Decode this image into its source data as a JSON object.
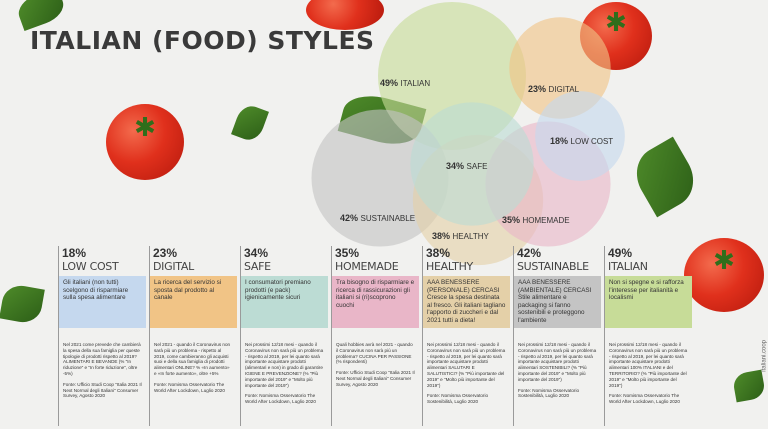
{
  "title": "ITALIAN (FOOD) STYLES",
  "watermark": "italiani.coop",
  "colors": {
    "italian": "#c7dc98",
    "digital": "#f1c486",
    "low_cost": "#c5d8ee",
    "safe": "#bcdcd4",
    "homemade": "#e9b6c8",
    "healthy": "#e4d0a8",
    "sustainable": "#c4c4c4"
  },
  "chart_data": {
    "type": "bubble",
    "title": "ITALIAN (FOOD) STYLES",
    "unit": "%",
    "series": [
      {
        "name": "ITALIAN",
        "value": 49
      },
      {
        "name": "DIGITAL",
        "value": 23
      },
      {
        "name": "LOW COST",
        "value": 18
      },
      {
        "name": "SAFE",
        "value": 34
      },
      {
        "name": "SUSTAINABLE",
        "value": 42
      },
      {
        "name": "HOMEMADE",
        "value": 35
      },
      {
        "name": "HEALTHY",
        "value": 38
      }
    ]
  },
  "columns": [
    {
      "pct": "18%",
      "cat": "LOW COST",
      "color_key": "low_cost",
      "desc": "Gli italiani (non tutti) scelgono di risparmiare sulla spesa alimentare",
      "note": "Nel 2021 come prevede che cambierà la spesa della sua famiglia per queste tipologie di prodotti rispetto al 2019? ALIMENTARI E BEVANDE (% \"In riduzione\" e \"In forte riduzione\", oltre -5%)",
      "source": "Fonte: Ufficio Studi Coop \"Italia 2021 Il Next Normal degli Italiani\" Consumer Survey, Agosto 2020"
    },
    {
      "pct": "23%",
      "cat": "DIGITAL",
      "color_key": "digital",
      "desc": "La ricerca del servizio si sposta dal prodotto al canale",
      "note": "Nel 2021 - quando il Coronavirus non sarà più un problema - rispetto al 2019, come cambieranno gli acquisti suoi e della sua famiglia di prodotti alimentari ONLINE? % «In aumento» e «In forte aumento», oltre +5%",
      "source": "Fonte: Nomisma Osservatorio The World After Lockdown, Luglio 2020"
    },
    {
      "pct": "34%",
      "cat": "SAFE",
      "color_key": "safe",
      "desc": "I consumatori premiano prodotti (e pack) igienicamente sicuri",
      "note": "Nei prossimi 12/18 mesi - quando il Coronavirus non sarà più un problema - rispetto al 2019, per lei quanto sarà importante acquistare prodotti (alimentari e non) in grado di garantire IGIENE E PREVENZIONE? (% \"Più importante del 2019\" e \"Molto più importante del 2019\")",
      "source": "Fonte: Nomisma Osservatorio The World After Lockdown, Luglio 2020"
    },
    {
      "pct": "35%",
      "cat": "HOMEMADE",
      "color_key": "homemade",
      "desc": "Tra bisogno di risparmiare e ricerca di rassicurazioni gli italiani si (ri)scoprono cuochi",
      "note": "Quali hobbies avrà nel 2021 - quando il Coronavirus non sarà più un problema? CUCINA PER PASSIONE (% rispondenti)",
      "source": "Fonte: Ufficio Studi Coop \"Italia 2021 Il Next Normal degli Italiani\" Consumer Survey, Agosto 2020"
    },
    {
      "pct": "38%",
      "cat": "HEALTHY",
      "color_key": "healthy",
      "desc": "AAA BENESSERE (PERSONALE) CERCASI Cresce la spesa destinata al fresco. Gli italiani tagliano l'apporto di zuccheri e dal 2021 tutti a dieta!",
      "note": "Nei prossimi 12/18 mesi - quando il Coronavirus non sarà più un problema - rispetto al 2019, per lei quanto sarà importante acquistare prodotti alimentari SALUTARI E SALUTISTICI? (% \"Più importante del 2019\" e \"Molto più importante del 2019\")",
      "source": "Fonte: Nomisma Osservatorio Sostenibilità, Luglio 2020"
    },
    {
      "pct": "42%",
      "cat": "SUSTAINABLE",
      "color_key": "sustainable",
      "desc": "AAA BENESSERE (AMBIENTALE) CERCASI Stile alimentare e packaging si fanno sostenibili e proteggono l'ambiente",
      "note": "Nei prossimi 12/18 mesi - quando il Coronavirus non sarà più un problema - rispetto al 2019, per lei quanto sarà importante acquistare prodotti alimentari SOSTENIBILI? (% \"Più importante del 2019\" e \"Molto più importante del 2019\")",
      "source": "Fonte: Nomisma Osservatorio Sostenibilità, Luglio 2020"
    },
    {
      "pct": "49%",
      "cat": "ITALIAN",
      "color_key": "italian",
      "desc": "Non si spegne e si rafforza l'interesse per italianità e localismi",
      "note": "Nei prossimi 12/18 mesi - quando il Coronavirus non sarà più un problema - rispetto al 2019, per lei quanto sarà importante acquistare prodotti alimentari 100% ITALIANI e del TERRITORIO? (% \"Più importante del 2019\" e \"Molto più importante del 2019\")",
      "source": "Fonte: Nomisma Osservatorio The World After Lockdown, Luglio 2020"
    }
  ]
}
